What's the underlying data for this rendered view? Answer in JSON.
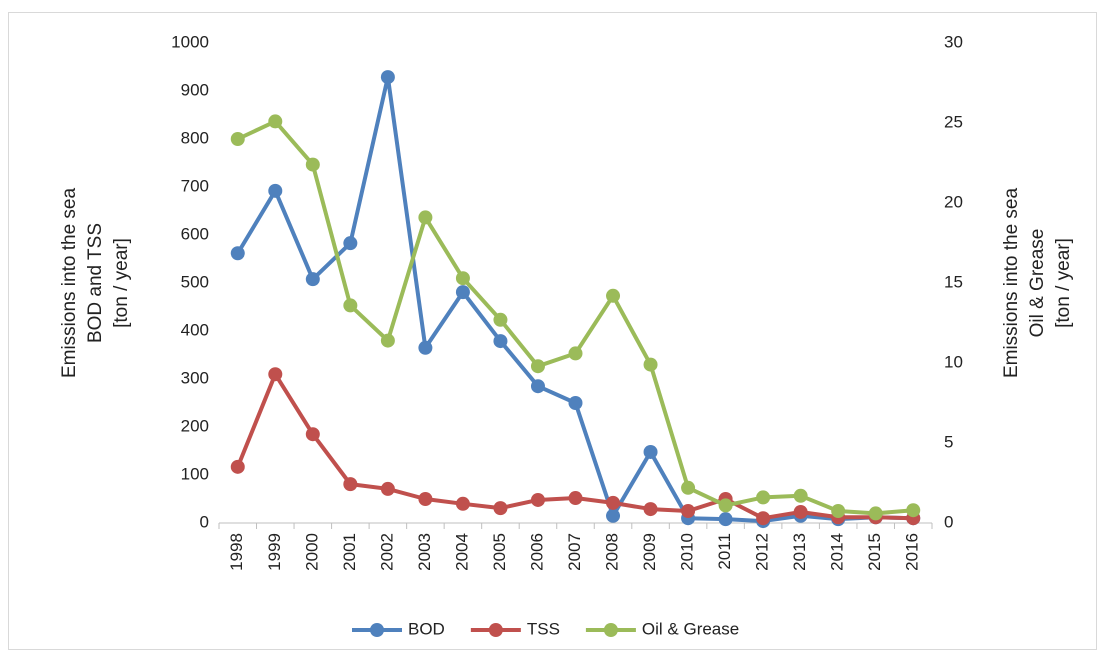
{
  "chart_data": {
    "type": "line",
    "categories": [
      "1998",
      "1999",
      "2000",
      "2001",
      "2002",
      "2003",
      "2004",
      "2005",
      "2006",
      "2007",
      "2008",
      "2009",
      "2010",
      "2011",
      "2012",
      "2013",
      "2014",
      "2015",
      "2016"
    ],
    "y_label": [
      "Emissions into the sea",
      "BOD and TSS",
      "[ton / year]"
    ],
    "y2_label": [
      "Emissions into the sea",
      "Oil & Grease",
      "[ton / year]"
    ],
    "ylim": [
      0,
      1000
    ],
    "yticks": [
      0,
      100,
      200,
      300,
      400,
      500,
      600,
      700,
      800,
      900,
      1000
    ],
    "y2lim": [
      0,
      30
    ],
    "y2ticks": [
      0,
      5,
      10,
      15,
      20,
      25,
      30
    ],
    "grid": false,
    "legend": "bottom",
    "series": [
      {
        "name": "BOD",
        "color": "#4f81bd",
        "values": [
          562,
          692,
          508,
          583,
          929,
          365,
          481,
          379,
          285,
          250,
          15,
          148,
          10,
          8,
          4,
          15,
          8,
          12,
          10
        ]
      },
      {
        "name": "TSS",
        "color": "#c0504d",
        "values": [
          117,
          310,
          185,
          81,
          71,
          50,
          40,
          31,
          48,
          52,
          42,
          29,
          25,
          50,
          10,
          23,
          12,
          12,
          10
        ]
      },
      {
        "name": "Oil & Grease",
        "color": "#9bbb59",
        "axis": "y2",
        "values": [
          24,
          25.1,
          22.4,
          13.6,
          11.4,
          19.1,
          15.3,
          12.7,
          9.8,
          10.6,
          14.2,
          9.9,
          2.2,
          1.1,
          1.6,
          1.7,
          0.75,
          0.6,
          0.8
        ]
      }
    ]
  }
}
